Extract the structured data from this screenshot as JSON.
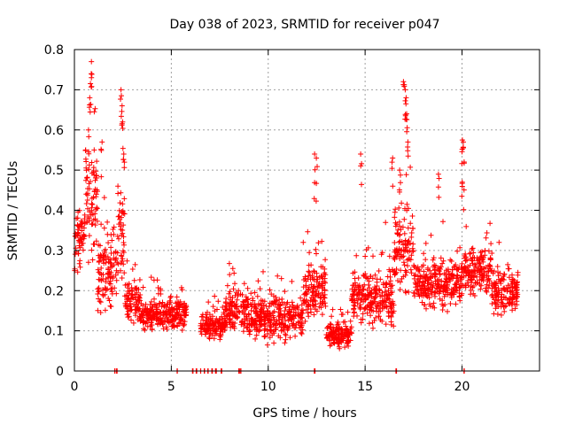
{
  "chart_data": {
    "type": "scatter",
    "title": "Day 038 of 2023, SRMTID for receiver p047",
    "xlabel": "GPS time / hours",
    "ylabel": "SRMTID / TECUs",
    "xlim": [
      0,
      24
    ],
    "ylim": [
      0,
      0.8
    ],
    "xticks": [
      0,
      5,
      10,
      15,
      20
    ],
    "yticks": [
      0,
      0.1,
      0.2,
      0.3,
      0.4,
      0.5,
      0.6,
      0.7,
      0.8
    ],
    "xtick_labels": [
      "0",
      "5",
      "10",
      "15",
      "20"
    ],
    "ytick_labels": [
      "0",
      "0.1",
      "0.2",
      "0.3",
      "0.4",
      "0.5",
      "0.6",
      "0.7",
      "0.8"
    ],
    "grid": true,
    "marker": "plus",
    "colors": {
      "series": "#ff0000",
      "grid": "#a0a0a0",
      "frame": "#000000"
    },
    "series": [
      {
        "name": "SRMTID",
        "segments": [
          {
            "start": 0.0,
            "end": 0.5,
            "base": 0.33,
            "spread": 0.1
          },
          {
            "start": 0.5,
            "end": 1.2,
            "base": 0.42,
            "spread": 0.2
          },
          {
            "start": 1.2,
            "end": 2.2,
            "base": 0.25,
            "spread": 0.14
          },
          {
            "start": 2.2,
            "end": 2.6,
            "base": 0.35,
            "spread": 0.18
          },
          {
            "start": 2.6,
            "end": 3.4,
            "base": 0.17,
            "spread": 0.07
          },
          {
            "start": 3.4,
            "end": 5.8,
            "base": 0.14,
            "spread": 0.06
          },
          {
            "start": 6.5,
            "end": 7.8,
            "base": 0.11,
            "spread": 0.04
          },
          {
            "start": 7.8,
            "end": 9.0,
            "base": 0.15,
            "spread": 0.07
          },
          {
            "start": 9.0,
            "end": 11.8,
            "base": 0.13,
            "spread": 0.07
          },
          {
            "start": 11.8,
            "end": 13.0,
            "base": 0.2,
            "spread": 0.1
          },
          {
            "start": 13.0,
            "end": 14.3,
            "base": 0.09,
            "spread": 0.04
          },
          {
            "start": 14.3,
            "end": 16.5,
            "base": 0.18,
            "spread": 0.09
          },
          {
            "start": 16.5,
            "end": 17.5,
            "base": 0.3,
            "spread": 0.15
          },
          {
            "start": 17.5,
            "end": 20.0,
            "base": 0.22,
            "spread": 0.08
          },
          {
            "start": 20.0,
            "end": 21.5,
            "base": 0.25,
            "spread": 0.08
          },
          {
            "start": 21.5,
            "end": 22.9,
            "base": 0.2,
            "spread": 0.08
          }
        ],
        "peaks": [
          {
            "x": 0.9,
            "y": 0.77
          },
          {
            "x": 0.85,
            "y": 0.74
          },
          {
            "x": 0.8,
            "y": 0.68
          },
          {
            "x": 0.75,
            "y": 0.6
          },
          {
            "x": 0.6,
            "y": 0.55
          },
          {
            "x": 1.4,
            "y": 0.57
          },
          {
            "x": 2.4,
            "y": 0.7
          },
          {
            "x": 2.45,
            "y": 0.66
          },
          {
            "x": 2.5,
            "y": 0.62
          },
          {
            "x": 2.55,
            "y": 0.54
          },
          {
            "x": 12.4,
            "y": 0.54
          },
          {
            "x": 12.5,
            "y": 0.53
          },
          {
            "x": 14.8,
            "y": 0.54
          },
          {
            "x": 16.4,
            "y": 0.53
          },
          {
            "x": 17.0,
            "y": 0.72
          },
          {
            "x": 17.05,
            "y": 0.7
          },
          {
            "x": 17.1,
            "y": 0.68
          },
          {
            "x": 17.15,
            "y": 0.64
          },
          {
            "x": 17.2,
            "y": 0.57
          },
          {
            "x": 16.8,
            "y": 0.5
          },
          {
            "x": 18.8,
            "y": 0.49
          },
          {
            "x": 20.0,
            "y": 0.575
          },
          {
            "x": 20.05,
            "y": 0.57
          },
          {
            "x": 20.1,
            "y": 0.52
          },
          {
            "x": 20.0,
            "y": 0.47
          }
        ],
        "zeros": [
          2.1,
          2.2,
          5.3,
          6.1,
          6.3,
          6.5,
          6.7,
          6.9,
          7.1,
          7.3,
          7.6,
          8.5,
          8.6,
          12.4,
          16.6,
          20.1
        ]
      }
    ]
  }
}
